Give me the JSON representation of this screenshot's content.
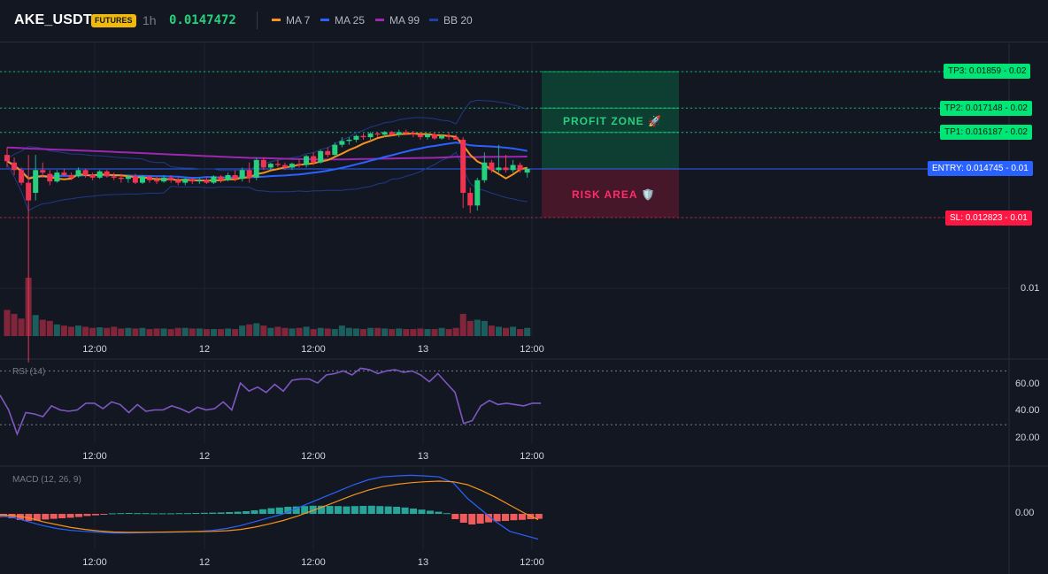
{
  "header": {
    "symbol": "AKE_USDT",
    "badge": "FUTURES",
    "timeframe": "1h",
    "price": "0.0147472",
    "legend": [
      {
        "label": "MA 7",
        "color": "#f7931a"
      },
      {
        "label": "MA 25",
        "color": "#2962ff"
      },
      {
        "label": "MA 99",
        "color": "#9c27b0"
      },
      {
        "label": "BB 20",
        "color": "#1e3a8a"
      }
    ]
  },
  "levels": {
    "tp3": {
      "label": "TP3: 0.01859",
      "right": "0.02"
    },
    "tp2": {
      "label": "TP2: 0.017148",
      "right": "0.02"
    },
    "tp1": {
      "label": "TP1: 0.016187",
      "right": "0.02"
    },
    "entry": {
      "label": "ENTRY: 0.014745",
      "right": "0.01"
    },
    "sl": {
      "label": "SL: 0.012823",
      "right": "0.01"
    }
  },
  "zones": {
    "profit": "PROFIT ZONE 🚀",
    "risk": "RISK AREA 🛡️"
  },
  "price_axis": {
    "tick": "0.01"
  },
  "time_labels": [
    "12:00",
    "12",
    "12:00",
    "13",
    "12:00"
  ],
  "rsi": {
    "title": "RSI (14)",
    "ticks": [
      "60.00",
      "40.00",
      "20.00"
    ]
  },
  "macd": {
    "title": "MACD (12, 26, 9)",
    "ticks": [
      "0.00"
    ]
  },
  "colors": {
    "up": "#26a69a",
    "down": "#ef3352",
    "tp": "#00e676",
    "entry": "#2962ff",
    "sl": "#ff1744",
    "rsi": "#7e57c2"
  },
  "chart_data": {
    "type": "candlestick",
    "candles": [
      {
        "o": 0.0153,
        "h": 0.0156,
        "l": 0.0148,
        "c": 0.01505
      },
      {
        "o": 0.015,
        "h": 0.0152,
        "l": 0.0145,
        "c": 0.0147
      },
      {
        "o": 0.0147,
        "h": 0.0148,
        "l": 0.0141,
        "c": 0.0142
      },
      {
        "o": 0.0142,
        "h": 0.0153,
        "l": 0.0071,
        "c": 0.0135
      },
      {
        "o": 0.0138,
        "h": 0.0153,
        "l": 0.0135,
        "c": 0.0147
      },
      {
        "o": 0.0147,
        "h": 0.015,
        "l": 0.0144,
        "c": 0.0146
      },
      {
        "o": 0.01455,
        "h": 0.0147,
        "l": 0.0141,
        "c": 0.01425
      },
      {
        "o": 0.01425,
        "h": 0.0147,
        "l": 0.0142,
        "c": 0.0146
      },
      {
        "o": 0.0146,
        "h": 0.01475,
        "l": 0.01445,
        "c": 0.0145
      },
      {
        "o": 0.0145,
        "h": 0.0146,
        "l": 0.0143,
        "c": 0.0144
      },
      {
        "o": 0.01445,
        "h": 0.0148,
        "l": 0.0144,
        "c": 0.0147
      },
      {
        "o": 0.0147,
        "h": 0.01475,
        "l": 0.0144,
        "c": 0.0145
      },
      {
        "o": 0.0145,
        "h": 0.0146,
        "l": 0.0143,
        "c": 0.0144
      },
      {
        "o": 0.0144,
        "h": 0.0147,
        "l": 0.01435,
        "c": 0.01465
      },
      {
        "o": 0.01465,
        "h": 0.0147,
        "l": 0.0144,
        "c": 0.01445
      },
      {
        "o": 0.01445,
        "h": 0.0146,
        "l": 0.0143,
        "c": 0.0144
      },
      {
        "o": 0.0144,
        "h": 0.01455,
        "l": 0.0142,
        "c": 0.01435
      },
      {
        "o": 0.01435,
        "h": 0.0145,
        "l": 0.0142,
        "c": 0.01445
      },
      {
        "o": 0.01445,
        "h": 0.01455,
        "l": 0.01415,
        "c": 0.0142
      },
      {
        "o": 0.0142,
        "h": 0.0145,
        "l": 0.01415,
        "c": 0.01445
      },
      {
        "o": 0.01445,
        "h": 0.0145,
        "l": 0.0142,
        "c": 0.0143
      },
      {
        "o": 0.0143,
        "h": 0.01445,
        "l": 0.01415,
        "c": 0.01425
      },
      {
        "o": 0.01425,
        "h": 0.0145,
        "l": 0.0142,
        "c": 0.0144
      },
      {
        "o": 0.0144,
        "h": 0.0145,
        "l": 0.0142,
        "c": 0.0143
      },
      {
        "o": 0.0143,
        "h": 0.0144,
        "l": 0.0141,
        "c": 0.0142
      },
      {
        "o": 0.0142,
        "h": 0.0144,
        "l": 0.0141,
        "c": 0.01435
      },
      {
        "o": 0.01435,
        "h": 0.0144,
        "l": 0.01415,
        "c": 0.01425
      },
      {
        "o": 0.01425,
        "h": 0.0144,
        "l": 0.01415,
        "c": 0.0143
      },
      {
        "o": 0.0143,
        "h": 0.0144,
        "l": 0.01415,
        "c": 0.0142
      },
      {
        "o": 0.0142,
        "h": 0.0145,
        "l": 0.01415,
        "c": 0.01445
      },
      {
        "o": 0.01445,
        "h": 0.0145,
        "l": 0.0142,
        "c": 0.0143
      },
      {
        "o": 0.0143,
        "h": 0.0146,
        "l": 0.01425,
        "c": 0.0145
      },
      {
        "o": 0.0145,
        "h": 0.0147,
        "l": 0.01425,
        "c": 0.01435
      },
      {
        "o": 0.01435,
        "h": 0.0148,
        "l": 0.01425,
        "c": 0.0147
      },
      {
        "o": 0.0147,
        "h": 0.015,
        "l": 0.0142,
        "c": 0.0144
      },
      {
        "o": 0.0144,
        "h": 0.0152,
        "l": 0.0143,
        "c": 0.0151
      },
      {
        "o": 0.0151,
        "h": 0.0152,
        "l": 0.0147,
        "c": 0.0148
      },
      {
        "o": 0.0148,
        "h": 0.015,
        "l": 0.0147,
        "c": 0.01495
      },
      {
        "o": 0.01495,
        "h": 0.0151,
        "l": 0.0148,
        "c": 0.0149
      },
      {
        "o": 0.0149,
        "h": 0.015,
        "l": 0.0147,
        "c": 0.0148
      },
      {
        "o": 0.0148,
        "h": 0.015,
        "l": 0.0147,
        "c": 0.01495
      },
      {
        "o": 0.01495,
        "h": 0.0151,
        "l": 0.0148,
        "c": 0.0149
      },
      {
        "o": 0.0149,
        "h": 0.0153,
        "l": 0.0148,
        "c": 0.01525
      },
      {
        "o": 0.01525,
        "h": 0.0154,
        "l": 0.0149,
        "c": 0.015
      },
      {
        "o": 0.015,
        "h": 0.0155,
        "l": 0.01495,
        "c": 0.01545
      },
      {
        "o": 0.01545,
        "h": 0.0156,
        "l": 0.0152,
        "c": 0.0153
      },
      {
        "o": 0.0153,
        "h": 0.0158,
        "l": 0.01525,
        "c": 0.0157
      },
      {
        "o": 0.0157,
        "h": 0.016,
        "l": 0.0156,
        "c": 0.01585
      },
      {
        "o": 0.01585,
        "h": 0.016,
        "l": 0.0157,
        "c": 0.0159
      },
      {
        "o": 0.0159,
        "h": 0.0161,
        "l": 0.0158,
        "c": 0.01605
      },
      {
        "o": 0.01605,
        "h": 0.01615,
        "l": 0.0159,
        "c": 0.016
      },
      {
        "o": 0.016,
        "h": 0.0162,
        "l": 0.0159,
        "c": 0.01615
      },
      {
        "o": 0.01615,
        "h": 0.0162,
        "l": 0.016,
        "c": 0.0161
      },
      {
        "o": 0.0161,
        "h": 0.01625,
        "l": 0.016,
        "c": 0.0162
      },
      {
        "o": 0.0162,
        "h": 0.01625,
        "l": 0.01605,
        "c": 0.0161
      },
      {
        "o": 0.0161,
        "h": 0.0163,
        "l": 0.016,
        "c": 0.0162
      },
      {
        "o": 0.0162,
        "h": 0.0163,
        "l": 0.0161,
        "c": 0.01615
      },
      {
        "o": 0.01615,
        "h": 0.01625,
        "l": 0.016,
        "c": 0.0161
      },
      {
        "o": 0.0161,
        "h": 0.0162,
        "l": 0.0159,
        "c": 0.016
      },
      {
        "o": 0.016,
        "h": 0.01615,
        "l": 0.0159,
        "c": 0.0161
      },
      {
        "o": 0.0161,
        "h": 0.0162,
        "l": 0.0159,
        "c": 0.01595
      },
      {
        "o": 0.01595,
        "h": 0.0161,
        "l": 0.0159,
        "c": 0.01605
      },
      {
        "o": 0.01605,
        "h": 0.0162,
        "l": 0.0159,
        "c": 0.016
      },
      {
        "o": 0.016,
        "h": 0.0161,
        "l": 0.0159,
        "c": 0.0159
      },
      {
        "o": 0.0159,
        "h": 0.016,
        "l": 0.0132,
        "c": 0.0138
      },
      {
        "o": 0.0138,
        "h": 0.014,
        "l": 0.013,
        "c": 0.0133
      },
      {
        "o": 0.0133,
        "h": 0.0144,
        "l": 0.0131,
        "c": 0.0143
      },
      {
        "o": 0.0143,
        "h": 0.0154,
        "l": 0.0142,
        "c": 0.015
      },
      {
        "o": 0.015,
        "h": 0.0151,
        "l": 0.0146,
        "c": 0.0147
      },
      {
        "o": 0.0147,
        "h": 0.0157,
        "l": 0.0146,
        "c": 0.0148
      },
      {
        "o": 0.0148,
        "h": 0.0153,
        "l": 0.0146,
        "c": 0.0147
      },
      {
        "o": 0.0147,
        "h": 0.0151,
        "l": 0.0146,
        "c": 0.0149
      },
      {
        "o": 0.0149,
        "h": 0.015,
        "l": 0.0146,
        "c": 0.0147
      },
      {
        "o": 0.0146,
        "h": 0.0148,
        "l": 0.0144,
        "c": 0.01475
      }
    ],
    "volume": [
      0.45,
      0.38,
      0.3,
      1.0,
      0.36,
      0.28,
      0.26,
      0.2,
      0.18,
      0.16,
      0.18,
      0.16,
      0.14,
      0.15,
      0.14,
      0.16,
      0.13,
      0.14,
      0.13,
      0.14,
      0.12,
      0.13,
      0.13,
      0.12,
      0.14,
      0.14,
      0.13,
      0.13,
      0.12,
      0.12,
      0.12,
      0.13,
      0.12,
      0.18,
      0.2,
      0.22,
      0.18,
      0.14,
      0.16,
      0.14,
      0.13,
      0.14,
      0.16,
      0.12,
      0.14,
      0.13,
      0.12,
      0.18,
      0.14,
      0.13,
      0.12,
      0.14,
      0.14,
      0.13,
      0.12,
      0.13,
      0.12,
      0.12,
      0.13,
      0.12,
      0.12,
      0.14,
      0.12,
      0.14,
      0.38,
      0.26,
      0.28,
      0.26,
      0.18,
      0.16,
      0.14,
      0.16,
      0.12,
      0.14
    ],
    "rsi": [
      52,
      41,
      23,
      39,
      38,
      36,
      44,
      41,
      40,
      41,
      46,
      46,
      42,
      47,
      45,
      39,
      45,
      40,
      41,
      41,
      44,
      42,
      39,
      43,
      41,
      42,
      47,
      41,
      61,
      55,
      58,
      54,
      60,
      55,
      63,
      64,
      64,
      61,
      67,
      68,
      70,
      67,
      72,
      71,
      68,
      70,
      71,
      69,
      70,
      67,
      62,
      68,
      61,
      54,
      31,
      33,
      44,
      48,
      45,
      46,
      45,
      44,
      46,
      46
    ],
    "macd_hist": [
      -0.00018,
      -0.00025,
      -0.00035,
      -0.0004,
      -0.00038,
      -0.00032,
      -0.00028,
      -0.00025,
      -0.00022,
      -0.00018,
      -0.00012,
      -8e-05,
      -2e-05,
      3e-05,
      4e-05,
      5e-05,
      4e-05,
      4e-05,
      3e-05,
      3e-05,
      3e-05,
      4e-05,
      4e-05,
      5e-05,
      6e-05,
      7e-05,
      8e-05,
      0.0001,
      0.00012,
      0.00015,
      0.0002,
      0.00026,
      0.00032,
      0.00036,
      0.0004,
      0.00042,
      0.00044,
      0.00046,
      0.00046,
      0.00045,
      0.00044,
      0.00042,
      0.00044,
      0.00045,
      0.00046,
      0.00044,
      0.00042,
      0.0004,
      0.00036,
      0.0003,
      0.00024,
      0.00018,
      0.00012,
      4e-05,
      -0.0003,
      -0.0005,
      -0.0006,
      -0.00055,
      -0.00048,
      -0.00042,
      -0.0004,
      -0.00036,
      -0.00034,
      -0.0003,
      -0.00028
    ],
    "macd": [
      -0.0001,
      -0.0002,
      -0.0004,
      -0.0006,
      -0.00075,
      -0.00085,
      -0.0009,
      -0.00095,
      -0.00098,
      -0.00098,
      -0.00097,
      -0.00095,
      -0.00094,
      -0.00093,
      -0.0009,
      -0.00085,
      -0.00075,
      -0.0006,
      -0.0004,
      -0.0002,
      0.0,
      0.0003,
      0.0006,
      0.0009,
      0.0012,
      0.0015,
      0.00175,
      0.0019,
      0.00195,
      0.00198,
      0.00195,
      0.0019,
      0.0016,
      0.0008,
      0.0002,
      -0.0004,
      -0.0009,
      -0.0011,
      -0.0013
    ],
    "macd_signal": [
      -5e-05,
      -0.0001,
      -0.0002,
      -0.0004,
      -0.00055,
      -0.0007,
      -0.0008,
      -0.00088,
      -0.00093,
      -0.00095,
      -0.00095,
      -0.00094,
      -0.00093,
      -0.00092,
      -0.00091,
      -0.0009,
      -0.00087,
      -0.0008,
      -0.00068,
      -0.00052,
      -0.00034,
      -0.00012,
      0.00015,
      0.00042,
      0.0007,
      0.00098,
      0.00122,
      0.0014,
      0.00152,
      0.0016,
      0.00165,
      0.00168,
      0.00165,
      0.0015,
      0.0012,
      0.00085,
      0.00045,
      5e-05,
      -0.0003
    ]
  }
}
